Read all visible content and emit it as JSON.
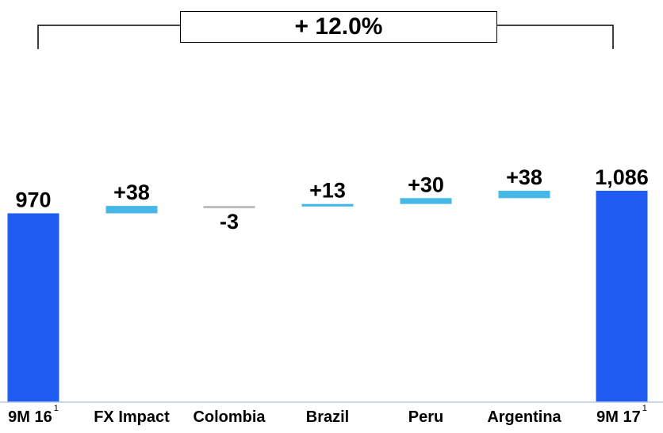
{
  "growth_label": "+ 12.0%",
  "colors": {
    "total": "#1f5cf0",
    "delta_up": "#45b8e8",
    "delta_down": "#bdbdbd",
    "axis": "#b9c9e6",
    "label": "#000000"
  },
  "chart_data": {
    "type": "waterfall",
    "categories": [
      "9M 16",
      "FX Impact",
      "Colombia",
      "Brazil",
      "Peru",
      "Argentina",
      "9M 17"
    ],
    "footnote_marks": [
      "1",
      "",
      "",
      "",
      "",
      "",
      "1"
    ],
    "bars": [
      {
        "kind": "total",
        "value": 970,
        "label": "970"
      },
      {
        "kind": "delta",
        "value": 38,
        "label": "+38"
      },
      {
        "kind": "delta",
        "value": -3,
        "label": "-3"
      },
      {
        "kind": "delta",
        "value": 13,
        "label": "+13"
      },
      {
        "kind": "delta",
        "value": 30,
        "label": "+30"
      },
      {
        "kind": "delta",
        "value": 38,
        "label": "+38"
      },
      {
        "kind": "total",
        "value": 1086,
        "label": "1,086"
      }
    ],
    "ylim": [
      0,
      1260
    ]
  }
}
